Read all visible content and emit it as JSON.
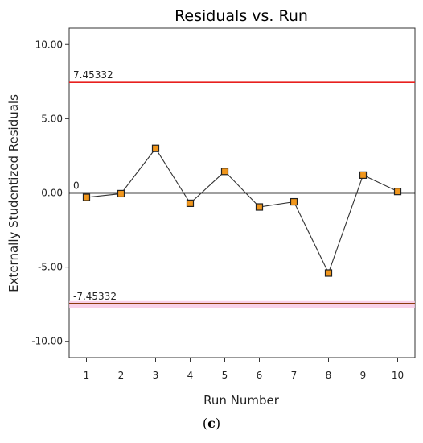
{
  "caption": {
    "open": "(",
    "letter": "c",
    "close": ")"
  },
  "chart_data": {
    "type": "line",
    "title": "Residuals vs. Run",
    "xlabel": "Run Number",
    "ylabel": "Externally Studentized Residuals",
    "x": [
      1,
      2,
      3,
      4,
      5,
      6,
      7,
      8,
      9,
      10
    ],
    "series": [
      {
        "values": [
          -0.3,
          -0.05,
          3.0,
          -0.7,
          1.45,
          -0.95,
          -0.6,
          -5.4,
          1.2,
          0.1
        ]
      }
    ],
    "xlim": [
      0.5,
      10.5
    ],
    "ylim": [
      -11.1,
      11.1
    ],
    "xticks": [
      "1",
      "2",
      "3",
      "4",
      "5",
      "6",
      "7",
      "8",
      "9",
      "10"
    ],
    "yticks": [
      {
        "value": 10,
        "label": "10.00"
      },
      {
        "value": 5,
        "label": "5.00"
      },
      {
        "value": 0,
        "label": "0.00"
      },
      {
        "value": -5,
        "label": "-5.00"
      },
      {
        "value": -10,
        "label": "-10.00"
      }
    ],
    "reference_lines": [
      {
        "value": 7.45332,
        "label": "7.45332",
        "color": "#e8201f"
      },
      {
        "value": 0,
        "label": "0",
        "color": "#000000"
      },
      {
        "value": -7.45332,
        "label": "-7.45332",
        "color": "#8b3a0e",
        "glow": "#f6c6e3"
      }
    ],
    "marker_fill": "#f0961c",
    "marker_stroke": "#222222",
    "line_color": "#333333",
    "grid": false
  }
}
